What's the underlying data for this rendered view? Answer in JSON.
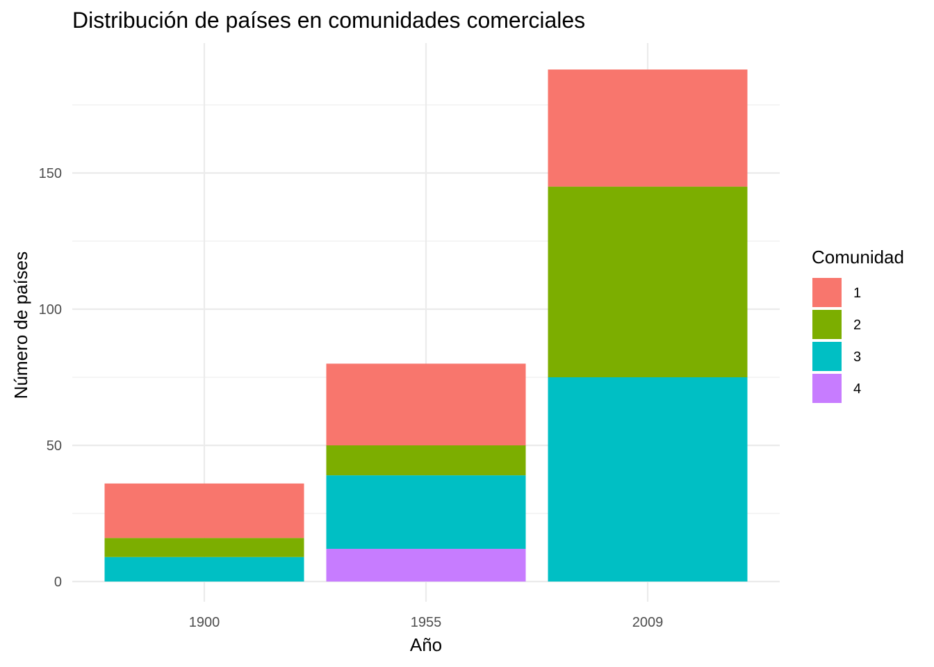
{
  "chart_data": {
    "type": "bar",
    "stacked": true,
    "title": "Distribución de países en comunidades comerciales",
    "xlabel": "Año",
    "ylabel": "Número de países",
    "categories": [
      "1900",
      "1955",
      "2009"
    ],
    "ylim": [
      0,
      196
    ],
    "yticks": [
      0,
      50,
      100,
      150
    ],
    "yticks_minor": [
      25,
      75,
      125,
      175
    ],
    "grid": true,
    "legend": {
      "title": "Comunidad",
      "placement": "right"
    },
    "series": [
      {
        "name": "1",
        "color": "#F8766D",
        "values": [
          20,
          30,
          43
        ]
      },
      {
        "name": "2",
        "color": "#7CAE00",
        "values": [
          7,
          11,
          70
        ]
      },
      {
        "name": "3",
        "color": "#00BFC4",
        "values": [
          9,
          27,
          75
        ]
      },
      {
        "name": "4",
        "color": "#C77CFF",
        "values": [
          0,
          12,
          0
        ]
      }
    ]
  }
}
